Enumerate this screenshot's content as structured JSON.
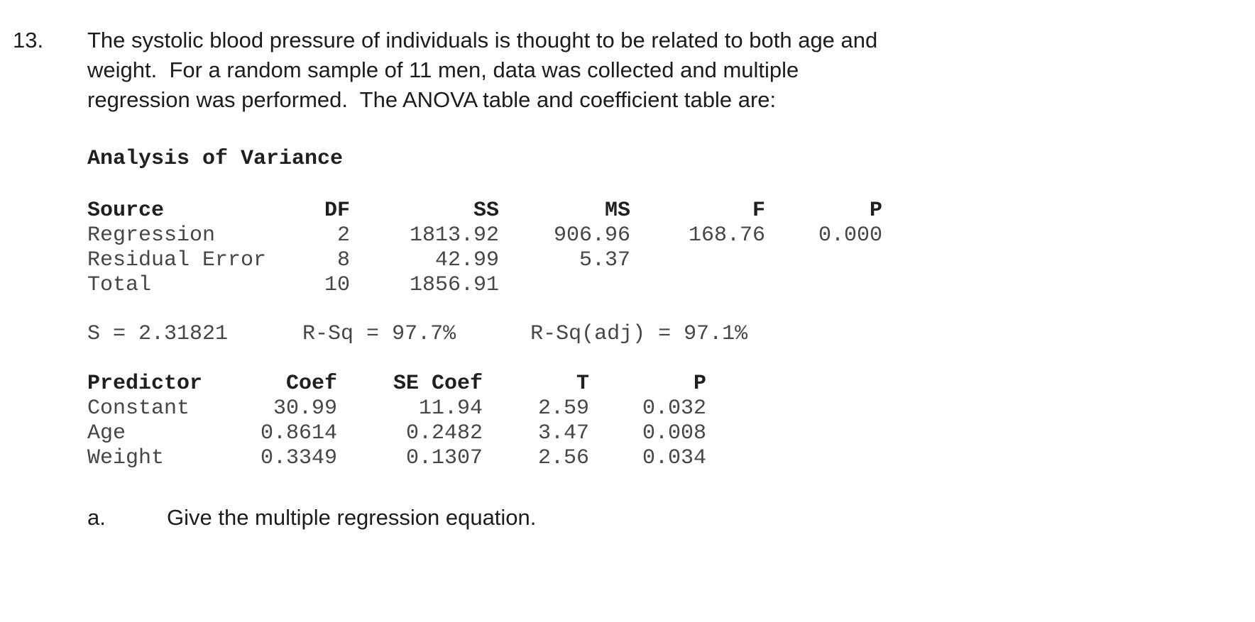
{
  "question": {
    "number": "13.",
    "lines": [
      "The systolic blood pressure of individuals is thought to be related to both age and",
      "weight.  For a random sample of 11 men, data was collected and multiple",
      "regression was performed.  The ANOVA table and coefficient table are:"
    ]
  },
  "anova": {
    "title": "Analysis of Variance",
    "headers": [
      "Source",
      "DF",
      "SS",
      "MS",
      "F",
      "P"
    ],
    "rows": [
      [
        "Regression",
        "2",
        "1813.92",
        "906.96",
        "168.76",
        "0.000"
      ],
      [
        "Residual Error",
        "8",
        "42.99",
        "5.37",
        "",
        ""
      ],
      [
        "Total",
        "10",
        "1856.91",
        "",
        "",
        ""
      ]
    ]
  },
  "model_summary": {
    "s": "S = 2.31821",
    "rsq": "R-Sq = 97.7%",
    "rsq_adj": "R-Sq(adj) = 97.1%"
  },
  "coefficients": {
    "headers": [
      "Predictor",
      "Coef",
      "SE Coef",
      "T",
      "P"
    ],
    "rows": [
      [
        "Constant",
        "30.99",
        "11.94",
        "2.59",
        "0.032"
      ],
      [
        "Age",
        "0.8614",
        "0.2482",
        "3.47",
        "0.008"
      ],
      [
        "Weight",
        "0.3349",
        "0.1307",
        "2.56",
        "0.034"
      ]
    ]
  },
  "subquestion": {
    "label": "a.",
    "text": "Give the multiple regression equation."
  }
}
